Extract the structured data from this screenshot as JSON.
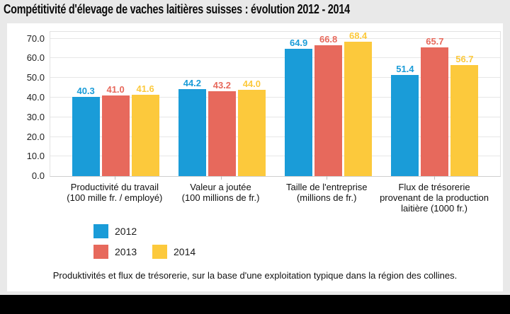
{
  "title": "Compétitivité d'élevage de vaches laitières suisses : évolution 2012 - 2014",
  "caption": "Produktivités et flux de trésorerie, sur la base d'une exploitation typique dans la région des collines.",
  "chart_data": {
    "type": "bar",
    "title": "Compétitivité d'élevage de vaches laitières suisses : évolution 2012 - 2014",
    "categories": [
      {
        "lines": [
          "Productivité du travail",
          "(100 mille fr. / employé)"
        ]
      },
      {
        "lines": [
          "Valeur a joutée",
          "(100 millions de fr.)"
        ]
      },
      {
        "lines": [
          "Taille de l'entreprise",
          "(millions de fr.)"
        ]
      },
      {
        "lines": [
          "Flux de trésorerie",
          "provenant de la production",
          "laitière (1000 fr.)"
        ]
      }
    ],
    "series": [
      {
        "name": "2012",
        "color": "#1a9cd8",
        "values": [
          40.3,
          44.2,
          64.9,
          51.4
        ]
      },
      {
        "name": "2013",
        "color": "#e7695c",
        "values": [
          41.0,
          43.2,
          66.8,
          65.7
        ]
      },
      {
        "name": "2014",
        "color": "#fcc93c",
        "values": [
          41.6,
          44.0,
          68.4,
          56.7
        ]
      }
    ],
    "value_label_decimals": 1,
    "y_axis": {
      "tick_values": [
        0,
        10,
        20,
        30,
        40,
        50,
        60,
        70
      ],
      "ticks": [
        "0.0",
        "10.0",
        "20.0",
        "30.0",
        "40.0",
        "50.0",
        "60.0",
        "70.0"
      ],
      "max": 73.5
    },
    "grid": true,
    "legend": {
      "position": "bottom-left",
      "rows": [
        [
          0
        ],
        [
          1,
          2
        ]
      ]
    },
    "xlabel": "",
    "ylabel": ""
  },
  "colors": {
    "background": "#e9e9e9",
    "card": "#ffffff",
    "footer_bar": "#000000",
    "series_2012": "#1a9cd8",
    "series_2013": "#e7695c",
    "series_2014": "#fcc93c"
  }
}
